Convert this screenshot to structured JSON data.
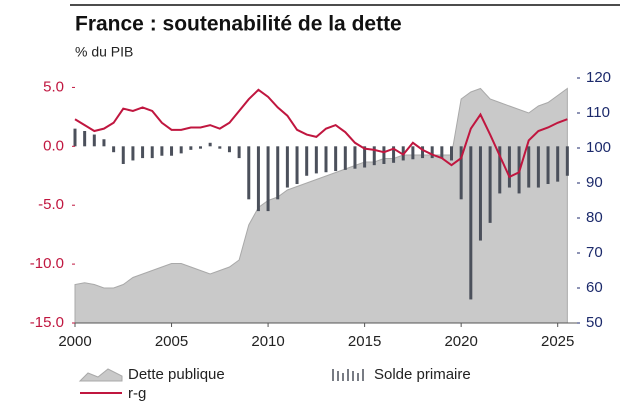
{
  "chart_data": {
    "type": "combo",
    "title": "France : soutenabilité de la dette",
    "subtitle": "% du PIB",
    "x": [
      2000,
      2000.5,
      2001,
      2001.5,
      2002,
      2002.5,
      2003,
      2003.5,
      2004,
      2004.5,
      2005,
      2005.5,
      2006,
      2006.5,
      2007,
      2007.5,
      2008,
      2008.5,
      2009,
      2009.5,
      2010,
      2010.5,
      2011,
      2011.5,
      2012,
      2012.5,
      2013,
      2013.5,
      2014,
      2014.5,
      2015,
      2015.5,
      2016,
      2016.5,
      2017,
      2017.5,
      2018,
      2018.5,
      2019,
      2019.5,
      2020,
      2020.5,
      2021,
      2021.5,
      2022,
      2022.5,
      2023,
      2023.5,
      2024,
      2024.5,
      2025,
      2025.5
    ],
    "xlim": [
      2000,
      2026
    ],
    "xticks": [
      2000,
      2005,
      2010,
      2015,
      2020,
      2025
    ],
    "ylim": [
      -15,
      5.8
    ],
    "yticks": [
      {
        "value": -15,
        "label": "-15.0"
      },
      {
        "value": -10,
        "label": "-10.0"
      },
      {
        "value": -5,
        "label": "-5.0"
      },
      {
        "value": 0,
        "label": "0.0"
      },
      {
        "value": 5,
        "label": "5.0"
      }
    ],
    "y2lim": [
      50,
      120
    ],
    "y2ticks": [
      50,
      60,
      70,
      80,
      90,
      100,
      110,
      120
    ],
    "left_axis_color": "#c0163f",
    "right_axis_color": "#1c2a6b",
    "grid": false,
    "legend": "bottom",
    "series": [
      {
        "name": "Dette publique",
        "type": "area",
        "axis": "y2",
        "color": "#c9c9c9",
        "values": [
          61,
          61.5,
          61,
          60,
          60,
          61,
          63,
          64,
          65,
          66,
          67,
          67,
          66,
          65,
          64,
          65,
          66,
          68,
          78,
          83,
          85,
          86,
          88,
          89,
          90,
          91,
          92,
          93,
          94,
          95,
          96,
          96,
          97,
          97,
          98,
          98,
          98,
          98,
          98,
          98,
          114,
          116,
          117,
          114,
          113,
          112,
          111,
          110,
          112,
          113,
          115,
          117
        ]
      },
      {
        "name": "Solde primaire",
        "type": "bar",
        "color": "#4b505b",
        "values": [
          1.5,
          1.3,
          1.0,
          0.6,
          -0.5,
          -1.5,
          -1.2,
          -1.0,
          -1.0,
          -0.8,
          -0.8,
          -0.6,
          -0.3,
          -0.2,
          0.3,
          -0.2,
          -0.5,
          -1.0,
          -4.5,
          -5.5,
          -5.5,
          -4.5,
          -3.5,
          -3.2,
          -2.5,
          -2.3,
          -2.2,
          -2.1,
          -2.0,
          -1.9,
          -1.8,
          -1.6,
          -1.5,
          -1.4,
          -1.2,
          -1.1,
          -1.0,
          -1.0,
          -1.0,
          -1.2,
          -4.5,
          -13,
          -8,
          -6.5,
          -4,
          -3.5,
          -4,
          -3.5,
          -3.5,
          -3.2,
          -3.0,
          -2.5
        ]
      },
      {
        "name": "r-g",
        "type": "line",
        "color": "#c0163f",
        "values": [
          2.3,
          1.8,
          1.3,
          1.5,
          2.0,
          3.2,
          3.0,
          3.3,
          3.0,
          2.0,
          1.4,
          1.4,
          1.6,
          1.6,
          1.8,
          1.5,
          2.0,
          3.0,
          4.0,
          4.8,
          4.2,
          3.3,
          2.6,
          1.4,
          1.0,
          0.8,
          1.5,
          1.8,
          1.2,
          0.3,
          -0.2,
          -0.3,
          -0.5,
          -0.2,
          -0.7,
          0.3,
          -0.3,
          -0.7,
          -1.0,
          -1.6,
          -1.0,
          1.5,
          2.7,
          1.0,
          -0.8,
          -2.6,
          -2.2,
          0.5,
          1.3,
          1.6,
          2.0,
          2.3
        ]
      }
    ]
  }
}
